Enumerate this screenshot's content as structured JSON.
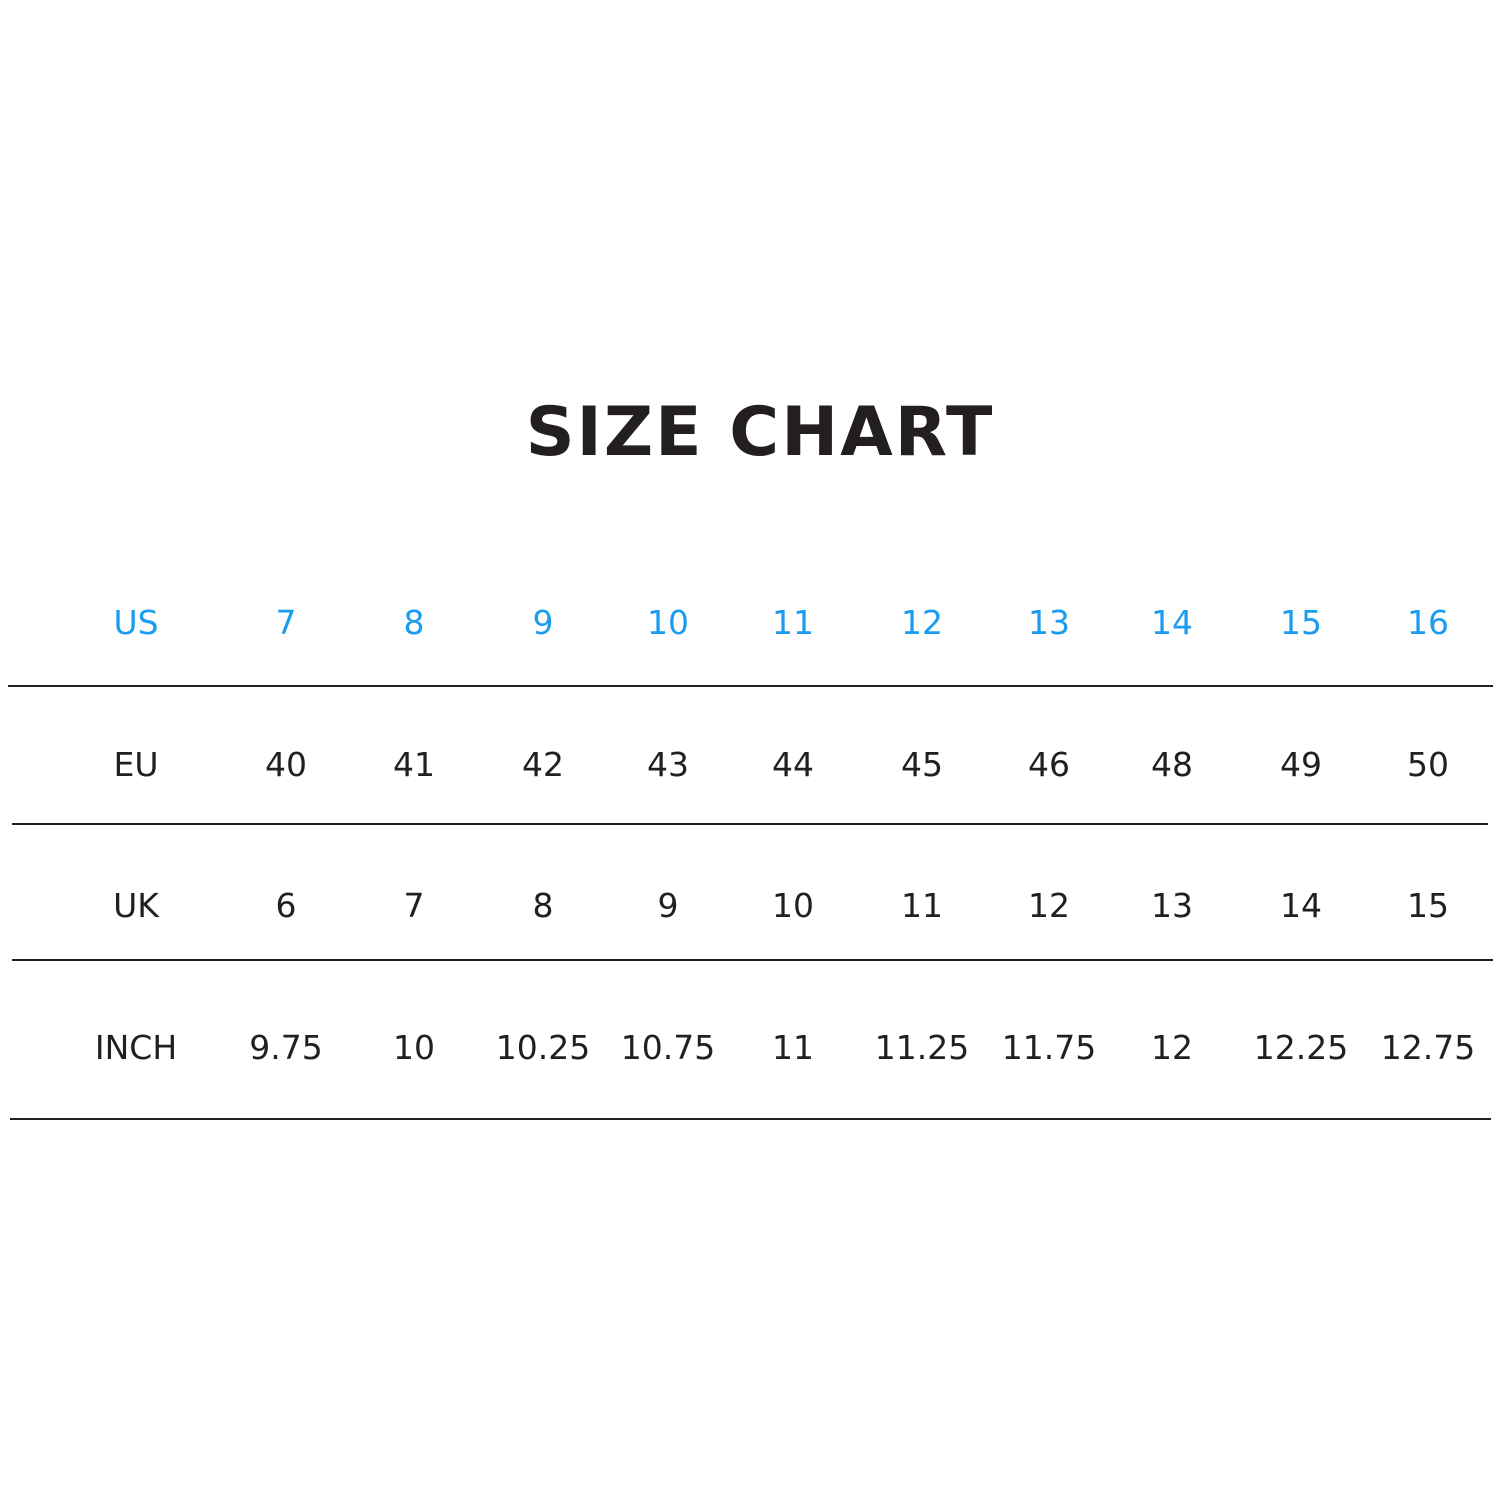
{
  "title": "SIZE CHART",
  "colors": {
    "header_text": "#1a9cf0",
    "body_text": "#231f20"
  },
  "table": {
    "rows": [
      {
        "label": "US",
        "values": [
          "7",
          "8",
          "9",
          "10",
          "11",
          "12",
          "13",
          "14",
          "15",
          "16"
        ]
      },
      {
        "label": "EU",
        "values": [
          "40",
          "41",
          "42",
          "43",
          "44",
          "45",
          "46",
          "48",
          "49",
          "50"
        ]
      },
      {
        "label": "UK",
        "values": [
          "6",
          "7",
          "8",
          "9",
          "10",
          "11",
          "12",
          "13",
          "14",
          "15"
        ]
      },
      {
        "label": "INCH",
        "values": [
          "9.75",
          "10",
          "10.25",
          "10.75",
          "11",
          "11.25",
          "11.75",
          "12",
          "12.25",
          "12.75"
        ]
      }
    ]
  }
}
